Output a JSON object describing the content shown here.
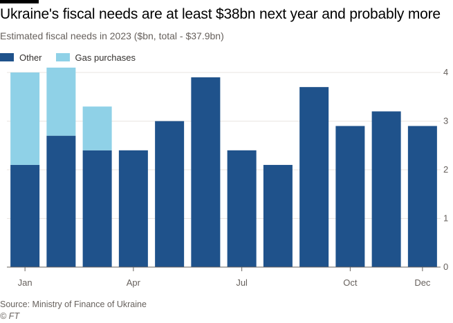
{
  "title": "Ukraine's fiscal needs are at least $38bn next year and probably more",
  "subtitle": "Estimated fiscal needs in 2023 ($bn, total - $37.9bn)",
  "source": "Source: Ministry of Finance of Ukraine",
  "credit": "© FT",
  "colors": {
    "other": "#1f528b",
    "gas": "#8fd1e7",
    "grid": "#e9e5e2",
    "axis": "#66605c"
  },
  "chart_data": {
    "type": "bar",
    "stacked": true,
    "categories": [
      "Jan",
      "Feb",
      "Mar",
      "Apr",
      "May",
      "Jun",
      "Jul",
      "Aug",
      "Sep",
      "Oct",
      "Nov",
      "Dec"
    ],
    "x_tick_labels": [
      "Jan",
      "",
      "",
      "Apr",
      "",
      "",
      "Jul",
      "",
      "",
      "Oct",
      "",
      "Dec"
    ],
    "series": [
      {
        "name": "Other",
        "color": "#1f528b",
        "values": [
          2.1,
          2.7,
          2.4,
          2.4,
          3.0,
          3.9,
          2.4,
          2.1,
          3.7,
          2.9,
          3.2,
          2.9
        ]
      },
      {
        "name": "Gas purchases",
        "color": "#8fd1e7",
        "values": [
          1.9,
          1.4,
          0.9,
          0,
          0,
          0,
          0,
          0,
          0,
          0,
          0,
          0
        ]
      }
    ],
    "ylim": [
      0,
      4
    ],
    "yticks": [
      0,
      1,
      2,
      3,
      4
    ],
    "y_axis_position": "right",
    "grid": true,
    "legend_position": "top-left"
  }
}
